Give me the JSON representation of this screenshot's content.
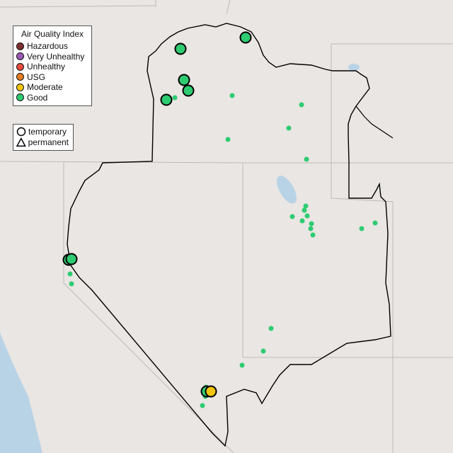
{
  "legend": {
    "title": "Air Quality Index",
    "categories": [
      {
        "label": "Hazardous",
        "color": "#7e2f2f"
      },
      {
        "label": "Very Unhealthy",
        "color": "#9b59b6"
      },
      {
        "label": "Unhealthy",
        "color": "#e74c3c"
      },
      {
        "label": "USG",
        "color": "#e67e22"
      },
      {
        "label": "Moderate",
        "color": "#f1c40f"
      },
      {
        "label": "Good",
        "color": "#2ecc71"
      }
    ],
    "types": [
      {
        "label": "temporary",
        "shape": "circle"
      },
      {
        "label": "permanent",
        "shape": "triangle"
      }
    ]
  },
  "map": {
    "land_color": "#e9e6e3",
    "water_color": "#b9d3e6",
    "boundary_color": "#000000"
  }
}
